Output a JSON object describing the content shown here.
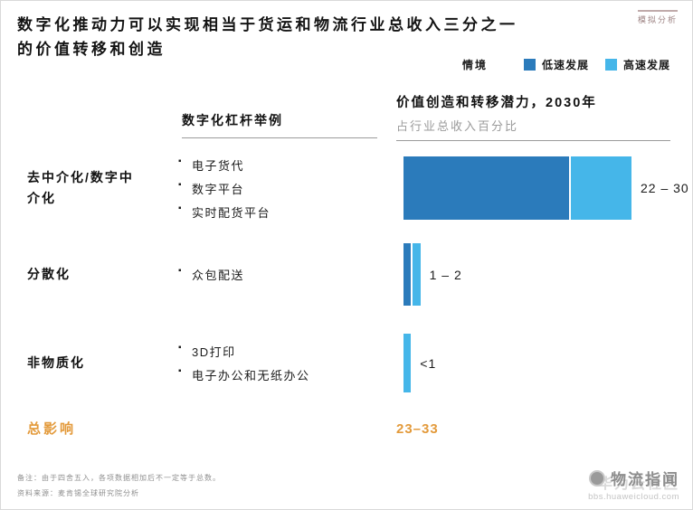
{
  "page": {
    "title_line1": "数字化推动力可以实现相当于货运和物流行业总收入三分之一",
    "title_line2": "的价值转移和创造",
    "tag": "模拟分析"
  },
  "legend": {
    "label": "情境",
    "items": [
      {
        "name": "低速发展",
        "color": "#2B7BBB"
      },
      {
        "name": "高速发展",
        "color": "#45B6E9"
      }
    ]
  },
  "columns": {
    "levers_header": "数字化杠杆举例",
    "value_header": "价值创造和转移潜力，2030年",
    "value_subheader": "占行业总收入百分比"
  },
  "chart_data": {
    "type": "bar",
    "orientation": "horizontal",
    "stacked": true,
    "title": "价值创造和转移潜力，2030年",
    "subtitle": "占行业总收入百分比",
    "categories": [
      "去中介化/数字中介化",
      "分散化",
      "非物质化"
    ],
    "series": [
      {
        "name": "低速发展",
        "values": [
          22,
          1,
          0
        ]
      },
      {
        "name": "高速发展",
        "values": [
          30,
          2,
          1
        ]
      }
    ],
    "value_labels": [
      "22 – 30",
      "1 – 2",
      "<1"
    ],
    "total_label": "23–33",
    "xlim": [
      0,
      30
    ],
    "legend_position": "top-right",
    "grid": false
  },
  "rows": [
    {
      "label": "去中介化/数字中介化",
      "bullets": [
        "电子货代",
        "数字平台",
        "实时配货平台"
      ],
      "low": 22,
      "high": 30,
      "value_label": "22 – 30"
    },
    {
      "label": "分散化",
      "bullets": [
        "众包配送"
      ],
      "low": 1,
      "high": 2,
      "value_label": "1 – 2"
    },
    {
      "label": "非物质化",
      "bullets": [
        "3D打印",
        "电子办公和无纸办公"
      ],
      "low": 0,
      "high": 1,
      "value_label": "<1"
    }
  ],
  "total": {
    "label": "总影响",
    "value": "23–33"
  },
  "footnotes": {
    "note": "备注：由于四舍五入，各项数据相加后不一定等于总数。",
    "source": "资料来源：麦肯锡全球研究院分析"
  },
  "watermark": {
    "primary": "物流指闻",
    "secondary": "华为云社区",
    "url": "bbs.huaweicloud.com"
  }
}
